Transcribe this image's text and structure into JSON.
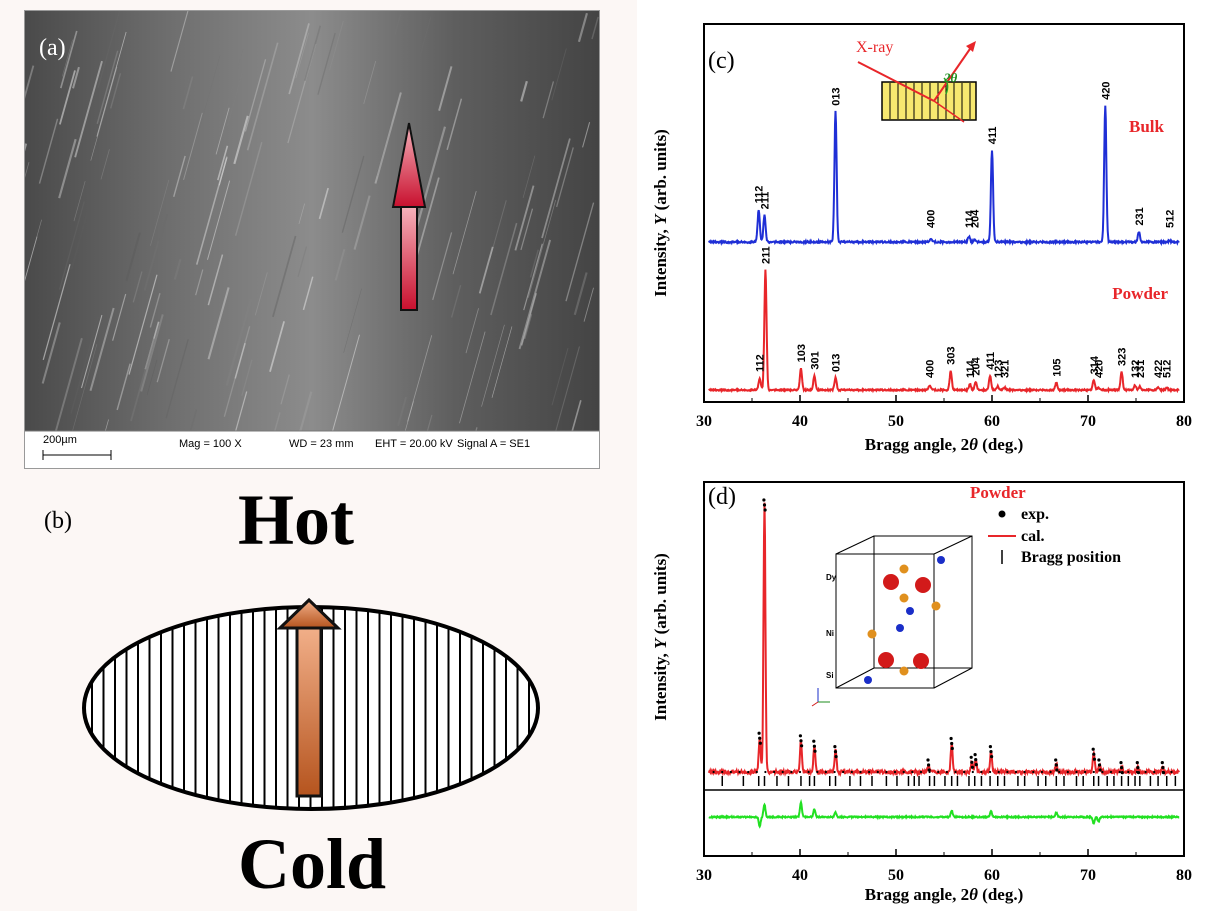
{
  "panel_a": {
    "label": "(a)",
    "scale_bar": "200µm",
    "mag": "Mag =  100 X",
    "wd": "WD =   23 mm",
    "eht": "EHT = 20.00 kV",
    "signal": "Signal A = SE1"
  },
  "panel_b": {
    "label": "(b)",
    "top_word": "Hot",
    "bottom_word": "Cold"
  },
  "panel_c": {
    "label": "(c)",
    "xray_label": "X-ray",
    "angle_label": "2θ",
    "bulk_label": "Bulk",
    "powder_label": "Powder"
  },
  "panel_d": {
    "label": "(d)",
    "legend_title": "Powder",
    "legend_exp": "exp.",
    "legend_cal": "cal.",
    "legend_bragg": "Bragg position",
    "atoms": [
      "Dy",
      "Ni",
      "Si"
    ]
  },
  "colors": {
    "bulk": "#1f2fd6",
    "powder": "#e8262a",
    "difference": "#22e022",
    "arrow_red": "#c8102e",
    "arrow_orange": "#d8743a",
    "crystal_box": "#f7e870"
  },
  "chart_data": [
    {
      "type": "line",
      "panel": "(c)",
      "xlabel": "Bragg angle, 2θ (deg.)",
      "ylabel": "Intensity, Y (arb. units)",
      "xlim": [
        30,
        80
      ],
      "xticks": [
        30,
        40,
        50,
        60,
        70,
        80
      ],
      "series": [
        {
          "name": "Bulk",
          "peaks": [
            {
              "x": 35.7,
              "h": 0.22,
              "hkl": "112"
            },
            {
              "x": 36.3,
              "h": 0.18,
              "hkl": "211"
            },
            {
              "x": 43.7,
              "h": 0.88,
              "hkl": "013"
            },
            {
              "x": 53.6,
              "h": 0.02,
              "hkl": "400"
            },
            {
              "x": 57.6,
              "h": 0.04,
              "hkl": "114"
            },
            {
              "x": 58.2,
              "h": 0.02,
              "hkl": "204"
            },
            {
              "x": 60.0,
              "h": 0.62,
              "hkl": "411"
            },
            {
              "x": 71.8,
              "h": 0.92,
              "hkl": "420"
            },
            {
              "x": 75.3,
              "h": 0.07,
              "hkl": "231"
            },
            {
              "x": 78.5,
              "h": 0.01,
              "hkl": "512"
            }
          ]
        },
        {
          "name": "Powder",
          "peaks": [
            {
              "x": 35.8,
              "h": 0.1,
              "hkl": "112"
            },
            {
              "x": 36.4,
              "h": 1.0,
              "hkl": "211"
            },
            {
              "x": 40.1,
              "h": 0.18,
              "hkl": "103"
            },
            {
              "x": 41.5,
              "h": 0.12,
              "hkl": "301"
            },
            {
              "x": 43.7,
              "h": 0.1,
              "hkl": "013"
            },
            {
              "x": 53.5,
              "h": 0.04,
              "hkl": "400"
            },
            {
              "x": 55.7,
              "h": 0.16,
              "hkl": "303"
            },
            {
              "x": 57.7,
              "h": 0.05,
              "hkl": "114"
            },
            {
              "x": 58.3,
              "h": 0.07,
              "hkl": "204"
            },
            {
              "x": 59.8,
              "h": 0.12,
              "hkl": "411"
            },
            {
              "x": 60.6,
              "h": 0.03,
              "hkl": "123"
            },
            {
              "x": 61.3,
              "h": 0.02,
              "hkl": "321"
            },
            {
              "x": 66.7,
              "h": 0.06,
              "hkl": "105"
            },
            {
              "x": 70.6,
              "h": 0.08,
              "hkl": "314"
            },
            {
              "x": 71.1,
              "h": 0.02,
              "hkl": "420"
            },
            {
              "x": 73.5,
              "h": 0.15,
              "hkl": "323"
            },
            {
              "x": 74.9,
              "h": 0.04,
              "hkl": "132"
            },
            {
              "x": 75.4,
              "h": 0.03,
              "hkl": "231"
            },
            {
              "x": 77.3,
              "h": 0.02,
              "hkl": "422"
            },
            {
              "x": 78.2,
              "h": 0.02,
              "hkl": "512"
            }
          ]
        }
      ]
    },
    {
      "type": "line",
      "panel": "(d)",
      "xlabel": "Bragg angle, 2θ (deg.)",
      "ylabel": "Intensity, Y (arb. units)",
      "xlim": [
        30,
        80
      ],
      "xticks": [
        30,
        40,
        50,
        60,
        70,
        80
      ],
      "series": [
        {
          "name": "exp.",
          "marker": "dot"
        },
        {
          "name": "cal.",
          "marker": "line"
        },
        {
          "name": "Bragg position",
          "marker": "tick"
        }
      ],
      "peaks": [
        {
          "x": 35.8,
          "h": 0.13
        },
        {
          "x": 36.3,
          "h": 1.0
        },
        {
          "x": 40.1,
          "h": 0.12
        },
        {
          "x": 41.5,
          "h": 0.1
        },
        {
          "x": 43.7,
          "h": 0.08
        },
        {
          "x": 53.4,
          "h": 0.03
        },
        {
          "x": 55.8,
          "h": 0.11
        },
        {
          "x": 57.9,
          "h": 0.04
        },
        {
          "x": 58.3,
          "h": 0.05
        },
        {
          "x": 59.9,
          "h": 0.08
        },
        {
          "x": 66.7,
          "h": 0.03
        },
        {
          "x": 70.6,
          "h": 0.07
        },
        {
          "x": 71.2,
          "h": 0.03
        },
        {
          "x": 73.5,
          "h": 0.02
        },
        {
          "x": 75.2,
          "h": 0.02
        },
        {
          "x": 77.8,
          "h": 0.02
        }
      ],
      "bragg_positions": [
        31.9,
        34.1,
        35.7,
        36.3,
        37.6,
        38.8,
        40.1,
        41.0,
        41.5,
        43.1,
        43.7,
        45.2,
        46.3,
        47.5,
        49.0,
        50.1,
        51.3,
        51.9,
        52.4,
        53.5,
        54.0,
        55.1,
        55.8,
        56.4,
        57.6,
        58.2,
        58.9,
        59.8,
        60.6,
        61.3,
        62.7,
        63.4,
        64.8,
        65.6,
        66.7,
        67.5,
        68.8,
        69.5,
        70.6,
        71.1,
        72.0,
        72.7,
        73.5,
        74.2,
        74.9,
        75.4,
        76.5,
        77.3,
        78.2,
        79.1
      ],
      "difference_peaks": [
        {
          "x": 35.8,
          "d": -0.6
        },
        {
          "x": 36.3,
          "d": 0.8
        },
        {
          "x": 40.1,
          "d": 0.9
        },
        {
          "x": 41.5,
          "d": 0.5
        },
        {
          "x": 43.7,
          "d": 0.3
        },
        {
          "x": 55.8,
          "d": 0.4
        },
        {
          "x": 59.9,
          "d": 0.35
        },
        {
          "x": 66.7,
          "d": 0.3
        },
        {
          "x": 70.6,
          "d": -0.4
        },
        {
          "x": 71.1,
          "d": -0.3
        }
      ]
    }
  ]
}
